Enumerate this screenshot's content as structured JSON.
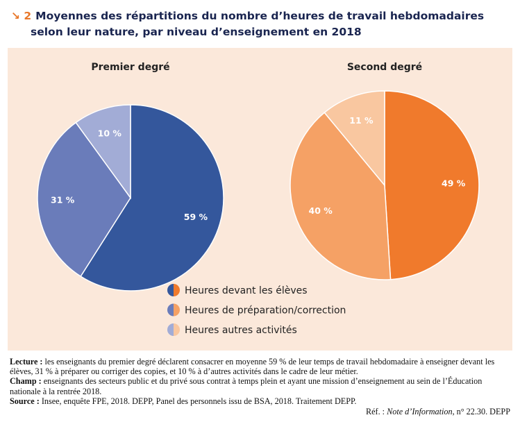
{
  "figure": {
    "marker": "↘ 2",
    "title_line1": "Moyennes des répartitions du nombre d’heures de travail hebdomadaires",
    "title_line2": "selon leur nature, par niveau d’enseignement en 2018"
  },
  "chart_data": [
    {
      "type": "pie",
      "title": "Premier degré",
      "categories": [
        "Heures devant les élèves",
        "Heures de préparation/correction",
        "Heures autres activités"
      ],
      "values": [
        59,
        31,
        10
      ],
      "labels": [
        "59 %",
        "31 %",
        "10 %"
      ],
      "colors": [
        "#34579c",
        "#6a7cba",
        "#a2acd6"
      ]
    },
    {
      "type": "pie",
      "title": "Second degré",
      "categories": [
        "Heures devant les élèves",
        "Heures de préparation/correction",
        "Heures autres activités"
      ],
      "values": [
        49,
        40,
        11
      ],
      "labels": [
        "49 %",
        "40 %",
        "11 %"
      ],
      "colors": [
        "#f07a2c",
        "#f5a165",
        "#f9c7a0"
      ]
    }
  ],
  "legend": {
    "placement": "bottom-center",
    "items": [
      "Heures devant les élèves",
      "Heures de préparation/correction",
      "Heures autres activités"
    ]
  },
  "notes": {
    "lecture_label": "Lecture :",
    "lecture_text": "les enseignants du premier degré déclarent consacrer en moyenne 59 % de leur temps de travail hebdomadaire à enseigner devant les élèves, 31 % à préparer ou corriger des copies, et 10 % à d’autres activités dans le cadre de leur métier.",
    "champ_label": "Champ :",
    "champ_text": "enseignants des secteurs public et du privé sous contrat à temps plein et ayant une mission d’enseignement au sein de l’Éducation nationale à la rentrée 2018.",
    "source_label": "Source :",
    "source_text": "Insee, enquête FPE, 2018. DEPP, Panel des personnels issu de BSA, 2018. Traitement DEPP.",
    "ref_prefix": "Réf. :",
    "ref_italic": "Note d’Information",
    "ref_suffix": ", n° 22.30. DEPP"
  }
}
